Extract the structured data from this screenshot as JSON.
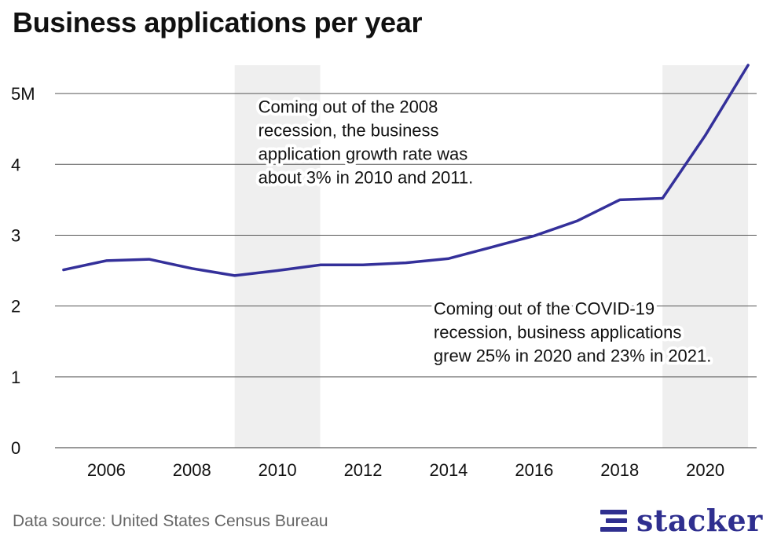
{
  "chart_data": {
    "type": "line",
    "title": "Business applications per year",
    "x": [
      2005,
      2006,
      2007,
      2008,
      2009,
      2010,
      2011,
      2012,
      2013,
      2014,
      2015,
      2016,
      2017,
      2018,
      2019,
      2020,
      2021
    ],
    "series": [
      {
        "values": [
          2.51,
          2.64,
          2.66,
          2.53,
          2.43,
          2.5,
          2.58,
          2.58,
          2.61,
          2.67,
          2.83,
          2.99,
          3.2,
          3.5,
          3.52,
          4.41,
          5.4
        ]
      }
    ],
    "xlim": [
      2004.8,
      2021.2
    ],
    "ylim": [
      0,
      5.4
    ],
    "x_ticks": [
      {
        "value": 2006,
        "label": "2006"
      },
      {
        "value": 2008,
        "label": "2008"
      },
      {
        "value": 2010,
        "label": "2010"
      },
      {
        "value": 2012,
        "label": "2012"
      },
      {
        "value": 2014,
        "label": "2014"
      },
      {
        "value": 2016,
        "label": "2016"
      },
      {
        "value": 2018,
        "label": "2018"
      },
      {
        "value": 2020,
        "label": "2020"
      }
    ],
    "y_ticks": [
      {
        "value": 0,
        "label": "0"
      },
      {
        "value": 1,
        "label": "1"
      },
      {
        "value": 2,
        "label": "2"
      },
      {
        "value": 3,
        "label": "3"
      },
      {
        "value": 4,
        "label": "4"
      },
      {
        "value": 5,
        "label": "5M"
      }
    ],
    "grid": true,
    "recession_bands": [
      {
        "start": 2009,
        "end": 2011
      },
      {
        "start": 2019,
        "end": 2021
      }
    ],
    "annotations": [
      {
        "lines": [
          "Coming out of the 2008",
          "recession, the business",
          "application growth rate was",
          "about 3% in 2010 and 2011."
        ],
        "x": 2009.55,
        "y": 4.73
      },
      {
        "lines": [
          "Coming out of the COVID-19",
          "recession, business applications",
          "grew 25% in 2020 and 23% in 2021."
        ],
        "x": 2013.65,
        "y": 1.88
      }
    ],
    "line_color": "#34309a",
    "band_color": "#efefef"
  },
  "footer": {
    "source": "Data source: United States Census Bureau",
    "brand": "stacker"
  }
}
